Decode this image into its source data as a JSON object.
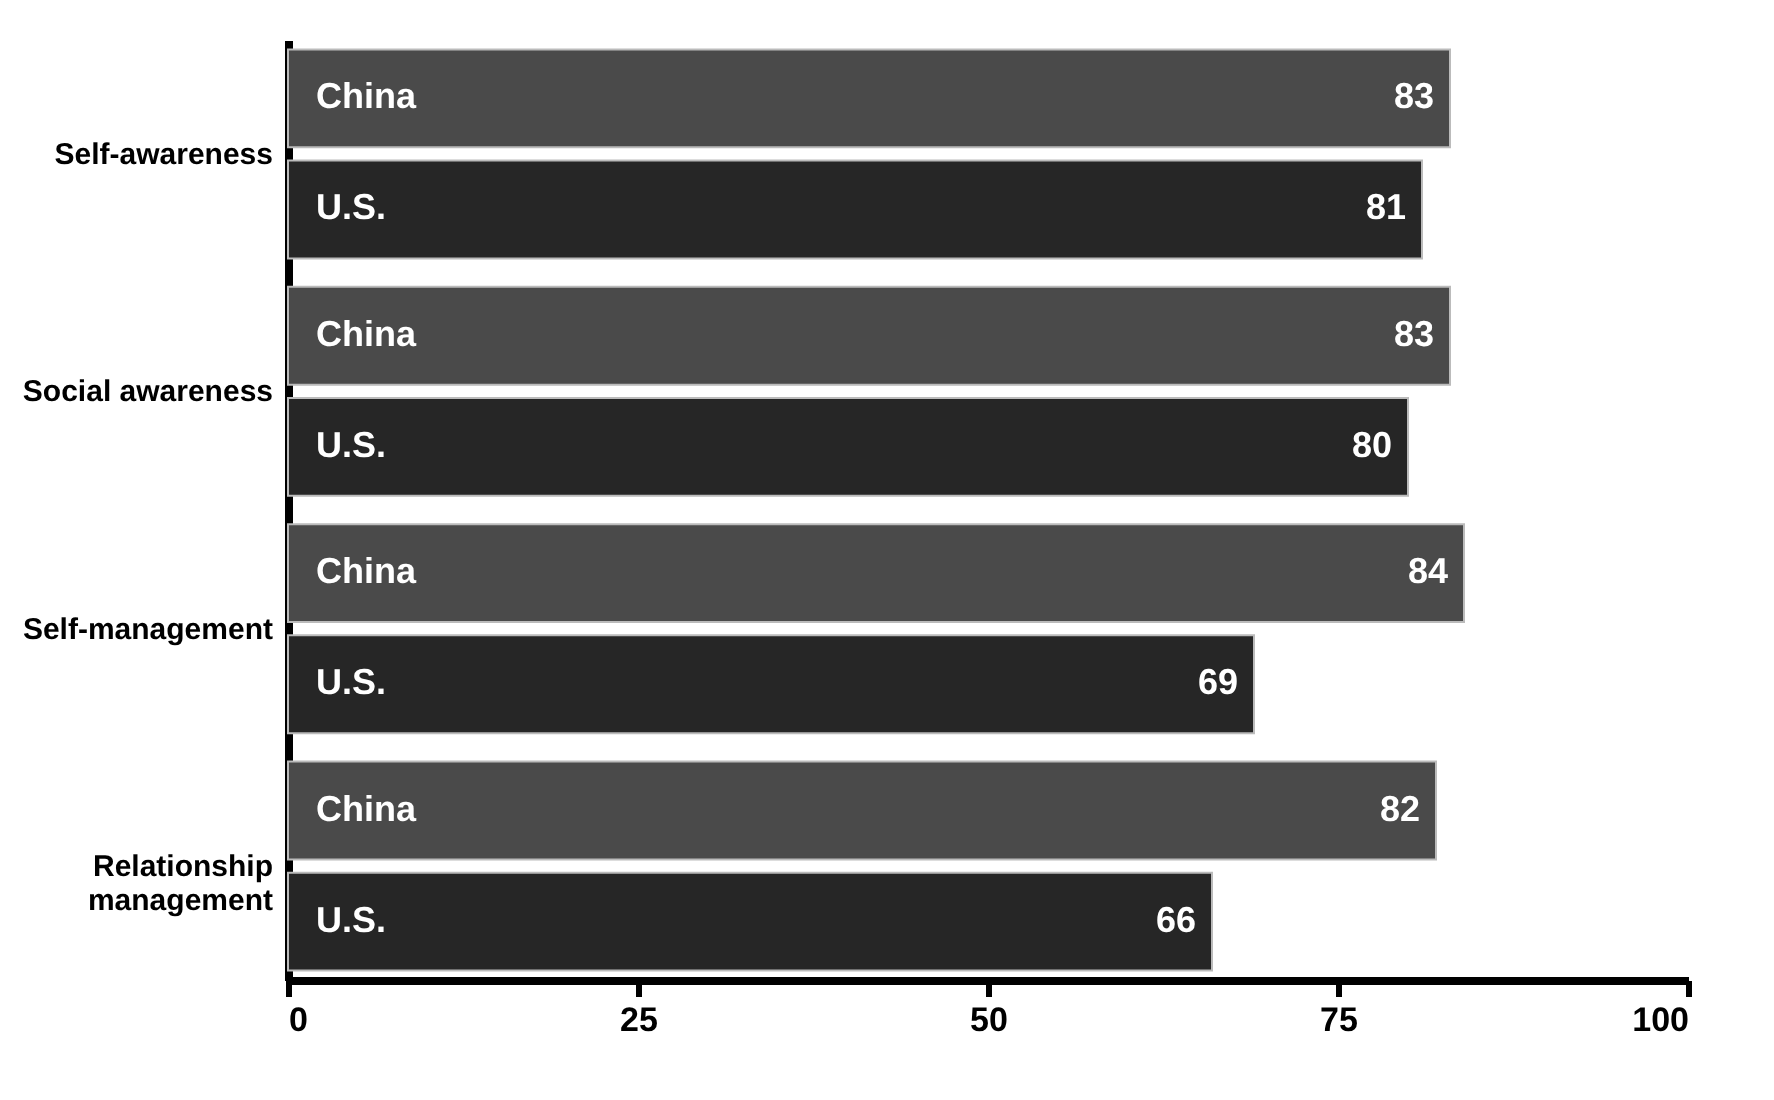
{
  "chart_data": {
    "type": "bar",
    "orientation": "horizontal",
    "categories": [
      "Self-awareness",
      "Social awareness",
      "Self-management",
      "Relationship management"
    ],
    "series": [
      {
        "name": "China",
        "color": "#4a4a4a",
        "values": [
          83,
          83,
          84,
          82
        ]
      },
      {
        "name": "U.S.",
        "color": "#262626",
        "values": [
          81,
          80,
          69,
          66
        ]
      }
    ],
    "xlim": [
      0,
      100
    ],
    "xticks": [
      0,
      25,
      50,
      75,
      100
    ],
    "data_labels": true,
    "grid": false,
    "legend": false
  }
}
